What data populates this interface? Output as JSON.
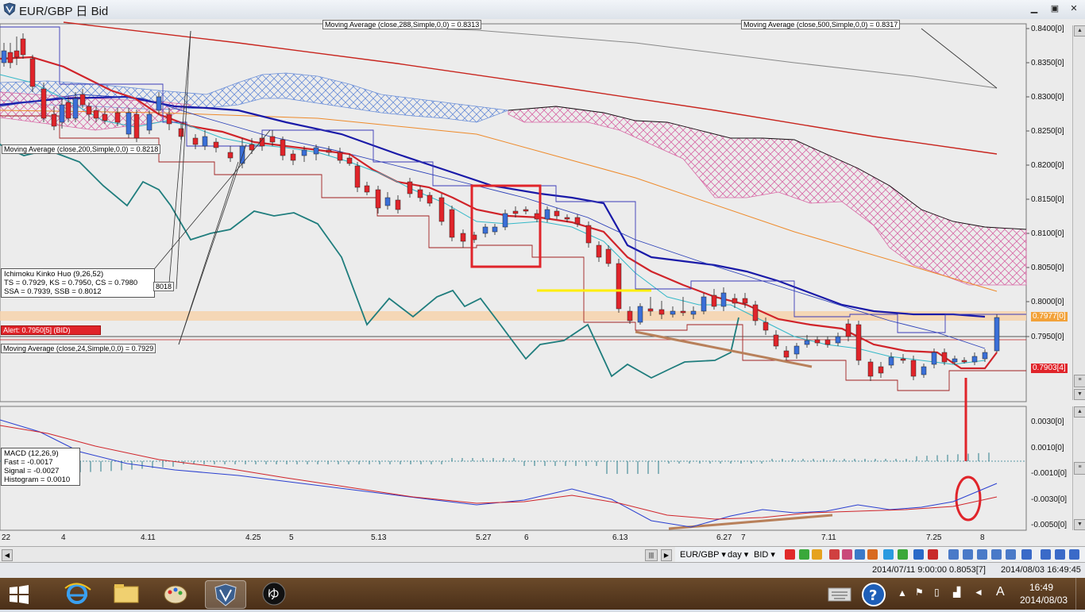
{
  "window": {
    "title": "EUR/GBP 日 Bid",
    "min": "▁",
    "max": "▣",
    "close": "✕"
  },
  "chart": {
    "ma288_label": "Moving Average (close,288,Simple,0,0) = 0.8313",
    "ma500_label": "Moving Average (close,500,Simple,0,0) = 0.8317",
    "ma200_label": "Moving Average (close,200,Simple,0,0) = 0.8218",
    "ichimoku": "Ichimoku Kinko Huo (9,26,52)\nTS = 0.7929, KS = 0.7950, CS = 0.7980\nSSA = 0.7939, SSB = 0.8012",
    "ichimoku_tag": "8018",
    "alert": "Alert: 0.7950[5] (BID)",
    "ma24_label": "Moving Average (close,24,Simple,0,0) = 0.7929",
    "price_ticks": [
      "0.8400[0]",
      "0.8350[0]",
      "0.8300[0]",
      "0.8250[0]",
      "0.8200[0]",
      "0.8150[0]",
      "0.8100[0]",
      "0.8050[0]",
      "0.8000[0]",
      "0.7950[0]"
    ],
    "price_tag_current": "0.7977[0]",
    "price_tag_low": "0.7903[4]",
    "macd_box": "MACD (12,26,9)\nFast = -0.0017\nSignal = -0.0027\nHistogram = 0.0010",
    "macd_ticks": [
      "0.0030[0]",
      "0.0010[0]",
      "-0.0010[0]",
      "-0.0030[0]",
      "-0.0050[0]"
    ],
    "date_ticks": [
      "22",
      "4",
      "4.11",
      "4.25",
      "5",
      "5.13",
      "5.27",
      "6",
      "6.13",
      "6.27",
      "7",
      "7.11",
      "7.25",
      "8"
    ]
  },
  "toolbar": {
    "symbol": "EUR/GBP ▾",
    "period": "day ▾",
    "side": "BID ▾"
  },
  "status": {
    "left": "2014/07/11 9:00:00  0.8053[7]",
    "right": "2014/08/03 16:49:45"
  },
  "taskbar": {
    "time": "16:49",
    "date": "2014/08/03",
    "ime": "A"
  },
  "colors": {
    "candle_up": "#3a6fd8",
    "candle_down": "#e0242a",
    "kumo": "#d86aa6",
    "teal": "#1f7d7d",
    "ma_red": "#d0242a",
    "ma_blue": "#1a1aa8"
  }
}
